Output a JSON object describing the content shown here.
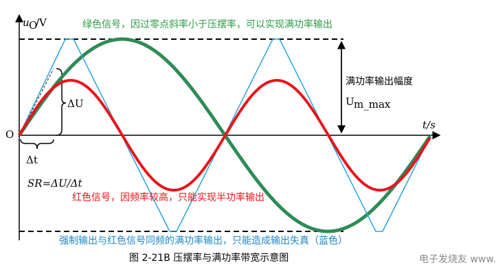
{
  "y_axis_label": {
    "symbol": "u",
    "sub": "O",
    "unit": "/V"
  },
  "x_axis_label": "t/s",
  "origin": "O",
  "green_note": "绿色信号，因过零点斜率小于压摆率，可以实现满功率输出",
  "amplitude_label": "满功率输出幅度",
  "amplitude_symbol": {
    "main": "U",
    "sub": "m_max"
  },
  "delta_u": "ΔU",
  "delta_t": "Δt",
  "slew_rate": "SR=ΔU/Δt",
  "red_note": "红色信号，因频率较高，只能实现半功率输出",
  "blue_note": "强制输出与红色信号同频的满功率输出，只能造成输出失真（蓝色）",
  "caption": "图 2-21B  压摆率与满功率带宽示意图",
  "watermark": "电子发烧友 www.elecfans.com"
}
